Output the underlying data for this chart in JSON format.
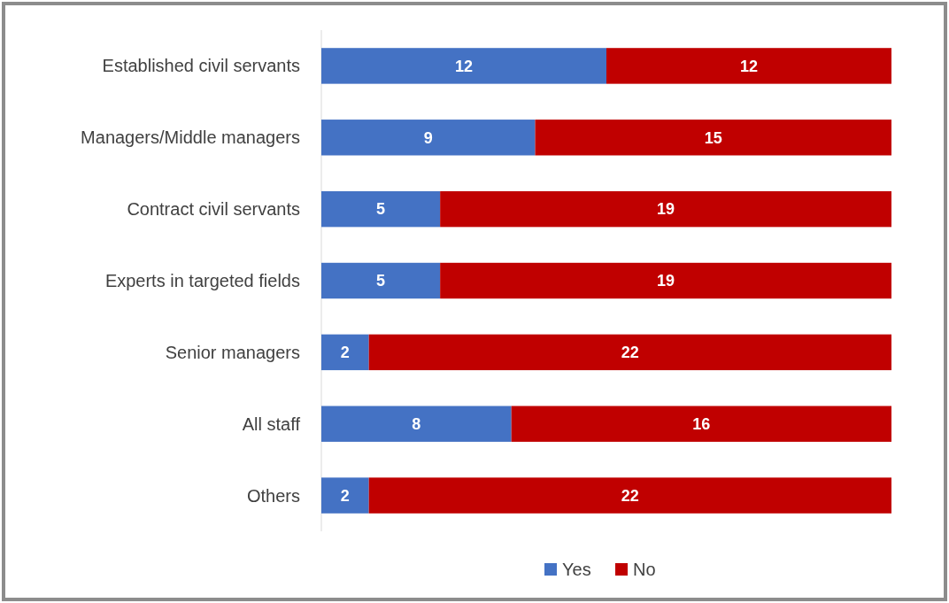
{
  "chart_data": {
    "type": "bar",
    "orientation": "horizontal",
    "stacked": true,
    "data_labels": true,
    "legend": "bottom",
    "categories": [
      "Established civil servants",
      "Managers/Middle managers",
      "Contract civil servants",
      "Experts in targeted fields",
      "Senior managers",
      "All staff",
      "Others"
    ],
    "series": [
      {
        "name": "Yes",
        "color": "#4472c4",
        "values": [
          12,
          9,
          5,
          5,
          2,
          8,
          2
        ]
      },
      {
        "name": "No",
        "color": "#c00000",
        "values": [
          12,
          15,
          19,
          19,
          22,
          16,
          22
        ]
      }
    ]
  }
}
